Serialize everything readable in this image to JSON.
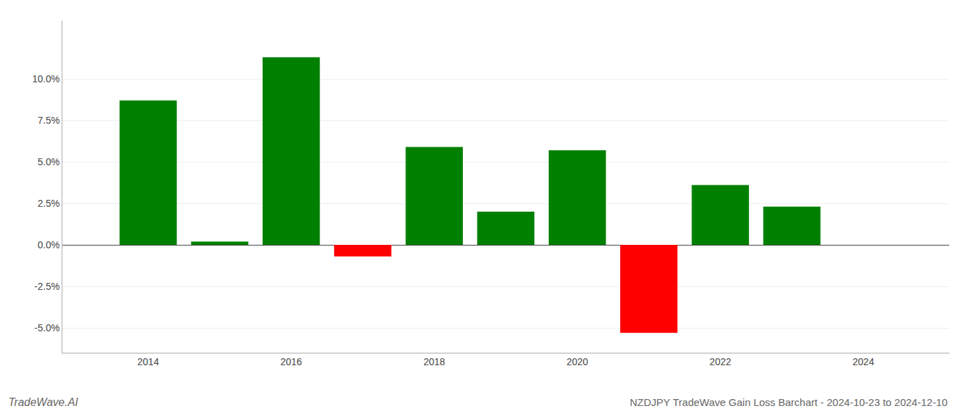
{
  "chart_data": {
    "type": "bar",
    "title": "NZDJPY TradeWave Gain Loss Barchart - 2024-10-23 to 2024-12-10",
    "annotations": [
      "TradeWave.AI"
    ],
    "x": [
      2014,
      2015,
      2016,
      2017,
      2018,
      2019,
      2020,
      2021,
      2022,
      2023
    ],
    "values": [
      8.7,
      0.2,
      11.3,
      -0.7,
      5.9,
      2.0,
      5.7,
      -5.3,
      3.6,
      2.3
    ],
    "colors": [
      "#008000",
      "#008000",
      "#008000",
      "#ff0000",
      "#008000",
      "#008000",
      "#008000",
      "#ff0000",
      "#008000",
      "#008000"
    ],
    "xlim": [
      2012.8,
      2025.2
    ],
    "xticks": [
      2014,
      2016,
      2018,
      2020,
      2022,
      2024
    ],
    "ylim": [
      -6.5,
      13.5
    ],
    "yticks": [
      {
        "value": -5.0,
        "label": "-5.0%"
      },
      {
        "value": -2.5,
        "label": "-2.5%"
      },
      {
        "value": 0.0,
        "label": "0.0%"
      },
      {
        "value": 2.5,
        "label": "2.5%"
      },
      {
        "value": 5.0,
        "label": "5.0%"
      },
      {
        "value": 7.5,
        "label": "7.5%"
      },
      {
        "value": 10.0,
        "label": "10.0%"
      }
    ],
    "grid": true
  }
}
